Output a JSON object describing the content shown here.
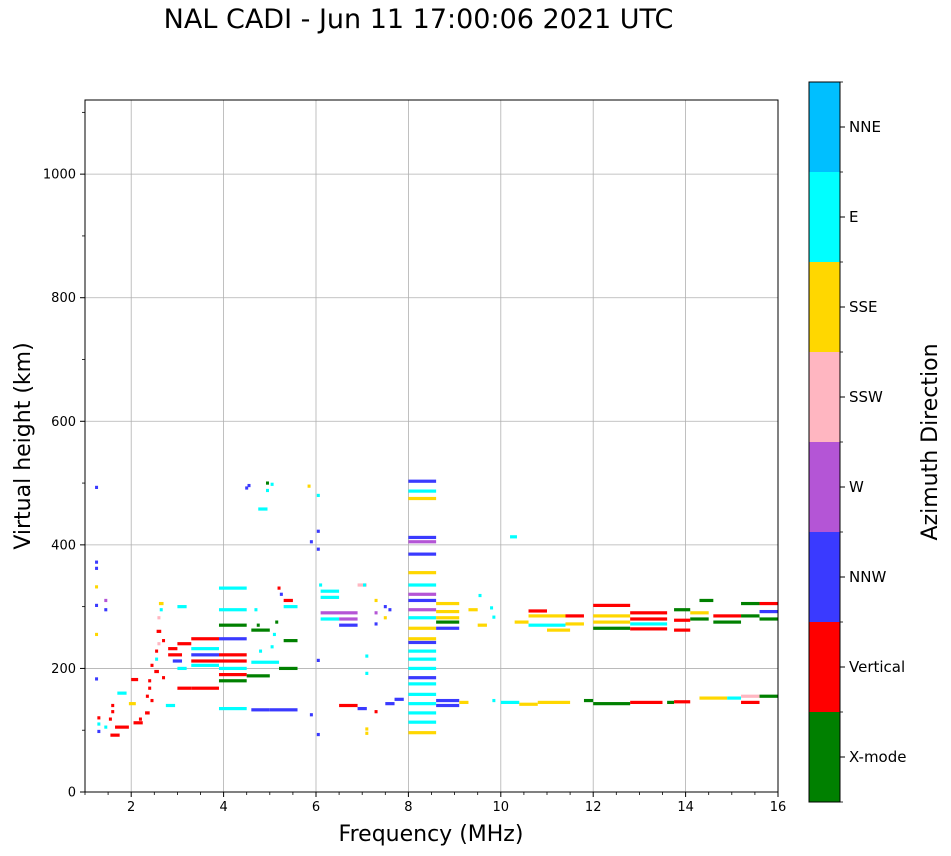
{
  "chart_data": {
    "type": "scatter",
    "title": "NAL CADI - Jun 11 17:00:06 2021 UTC",
    "xlabel": "Frequency (MHz)",
    "ylabel": "Virtual height (km)",
    "xlim": [
      1,
      16
    ],
    "ylim": [
      0,
      1120
    ],
    "xticks": [
      2,
      4,
      6,
      8,
      10,
      12,
      14,
      16
    ],
    "yticks": [
      0,
      200,
      400,
      600,
      800,
      1000
    ],
    "grid": true,
    "colorbar": {
      "label": "Azimuth Direction",
      "categories": [
        "X-mode",
        "Vertical",
        "NNW",
        "W",
        "SSW",
        "SSE",
        "E",
        "NNE"
      ],
      "colors": [
        "#008000",
        "#ff0000",
        "#3a3aff",
        "#b455d6",
        "#ffb6c1",
        "#ffd700",
        "#00ffff",
        "#00bfff"
      ]
    },
    "segments": [
      {
        "f0": 1.65,
        "f1": 1.95,
        "h": 105,
        "dir": "Vertical"
      },
      {
        "f0": 1.55,
        "f1": 1.75,
        "h": 92,
        "dir": "Vertical"
      },
      {
        "f0": 1.7,
        "f1": 1.9,
        "h": 160,
        "dir": "E"
      },
      {
        "f0": 1.95,
        "f1": 2.1,
        "h": 143,
        "dir": "SSE"
      },
      {
        "f0": 2.0,
        "f1": 2.15,
        "h": 182,
        "dir": "Vertical"
      },
      {
        "f0": 2.05,
        "f1": 2.25,
        "h": 112,
        "dir": "Vertical"
      },
      {
        "f0": 2.3,
        "f1": 2.4,
        "h": 128,
        "dir": "Vertical"
      },
      {
        "f0": 2.5,
        "f1": 2.6,
        "h": 195,
        "dir": "Vertical"
      },
      {
        "f0": 2.55,
        "f1": 2.65,
        "h": 260,
        "dir": "Vertical"
      },
      {
        "f0": 2.6,
        "f1": 2.7,
        "h": 305,
        "dir": "SSE"
      },
      {
        "f0": 2.75,
        "f1": 2.95,
        "h": 140,
        "dir": "E"
      },
      {
        "f0": 2.8,
        "f1": 3.0,
        "h": 232,
        "dir": "Vertical"
      },
      {
        "f0": 2.8,
        "f1": 3.1,
        "h": 222,
        "dir": "Vertical"
      },
      {
        "f0": 2.9,
        "f1": 3.1,
        "h": 212,
        "dir": "NNW"
      },
      {
        "f0": 3.0,
        "f1": 3.2,
        "h": 300,
        "dir": "E"
      },
      {
        "f0": 3.0,
        "f1": 3.3,
        "h": 240,
        "dir": "Vertical"
      },
      {
        "f0": 3.0,
        "f1": 3.3,
        "h": 168,
        "dir": "Vertical"
      },
      {
        "f0": 3.0,
        "f1": 3.2,
        "h": 200,
        "dir": "E"
      },
      {
        "f0": 3.3,
        "f1": 3.9,
        "h": 248,
        "dir": "Vertical"
      },
      {
        "f0": 3.3,
        "f1": 3.9,
        "h": 232,
        "dir": "E"
      },
      {
        "f0": 3.3,
        "f1": 3.9,
        "h": 222,
        "dir": "NNW"
      },
      {
        "f0": 3.3,
        "f1": 3.9,
        "h": 212,
        "dir": "Vertical"
      },
      {
        "f0": 3.3,
        "f1": 3.9,
        "h": 205,
        "dir": "E"
      },
      {
        "f0": 3.3,
        "f1": 3.9,
        "h": 168,
        "dir": "Vertical"
      },
      {
        "f0": 3.9,
        "f1": 4.5,
        "h": 330,
        "dir": "E"
      },
      {
        "f0": 3.9,
        "f1": 4.5,
        "h": 295,
        "dir": "E"
      },
      {
        "f0": 3.9,
        "f1": 4.5,
        "h": 270,
        "dir": "X-mode"
      },
      {
        "f0": 3.9,
        "f1": 4.5,
        "h": 248,
        "dir": "NNW"
      },
      {
        "f0": 3.9,
        "f1": 4.5,
        "h": 222,
        "dir": "Vertical"
      },
      {
        "f0": 3.9,
        "f1": 4.5,
        "h": 212,
        "dir": "Vertical"
      },
      {
        "f0": 3.9,
        "f1": 4.5,
        "h": 200,
        "dir": "E"
      },
      {
        "f0": 3.9,
        "f1": 4.5,
        "h": 190,
        "dir": "Vertical"
      },
      {
        "f0": 3.9,
        "f1": 4.5,
        "h": 180,
        "dir": "X-mode"
      },
      {
        "f0": 3.9,
        "f1": 4.5,
        "h": 135,
        "dir": "E"
      },
      {
        "f0": 4.5,
        "f1": 5.0,
        "h": 188,
        "dir": "X-mode"
      },
      {
        "f0": 4.6,
        "f1": 5.2,
        "h": 210,
        "dir": "E"
      },
      {
        "f0": 4.6,
        "f1": 5.0,
        "h": 262,
        "dir": "X-mode"
      },
      {
        "f0": 4.6,
        "f1": 5.0,
        "h": 133,
        "dir": "NNW"
      },
      {
        "f0": 4.75,
        "f1": 4.95,
        "h": 458,
        "dir": "E"
      },
      {
        "f0": 5.0,
        "f1": 5.6,
        "h": 133,
        "dir": "NNW"
      },
      {
        "f0": 5.2,
        "f1": 5.6,
        "h": 200,
        "dir": "X-mode"
      },
      {
        "f0": 5.3,
        "f1": 5.6,
        "h": 245,
        "dir": "X-mode"
      },
      {
        "f0": 5.3,
        "f1": 5.6,
        "h": 300,
        "dir": "E"
      },
      {
        "f0": 5.3,
        "f1": 5.5,
        "h": 310,
        "dir": "Vertical"
      },
      {
        "f0": 6.1,
        "f1": 6.5,
        "h": 325,
        "dir": "E"
      },
      {
        "f0": 6.1,
        "f1": 6.5,
        "h": 315,
        "dir": "E"
      },
      {
        "f0": 6.1,
        "f1": 6.9,
        "h": 290,
        "dir": "W"
      },
      {
        "f0": 6.1,
        "f1": 6.5,
        "h": 280,
        "dir": "E"
      },
      {
        "f0": 6.5,
        "f1": 6.9,
        "h": 270,
        "dir": "NNW"
      },
      {
        "f0": 6.5,
        "f1": 6.9,
        "h": 280,
        "dir": "W"
      },
      {
        "f0": 6.5,
        "f1": 6.9,
        "h": 140,
        "dir": "Vertical"
      },
      {
        "f0": 6.9,
        "f1": 7.1,
        "h": 335,
        "dir": "SSW"
      },
      {
        "f0": 6.9,
        "f1": 7.1,
        "h": 135,
        "dir": "NNW"
      },
      {
        "f0": 7.5,
        "f1": 7.7,
        "h": 143,
        "dir": "NNW"
      },
      {
        "f0": 7.7,
        "f1": 7.9,
        "h": 150,
        "dir": "NNW"
      },
      {
        "f0": 8.0,
        "f1": 8.6,
        "h": 503,
        "dir": "NNW"
      },
      {
        "f0": 8.0,
        "f1": 8.6,
        "h": 487,
        "dir": "E"
      },
      {
        "f0": 8.0,
        "f1": 8.6,
        "h": 475,
        "dir": "SSE"
      },
      {
        "f0": 8.0,
        "f1": 8.6,
        "h": 412,
        "dir": "NNW"
      },
      {
        "f0": 8.0,
        "f1": 8.6,
        "h": 405,
        "dir": "W"
      },
      {
        "f0": 8.0,
        "f1": 8.6,
        "h": 385,
        "dir": "NNW"
      },
      {
        "f0": 8.0,
        "f1": 8.6,
        "h": 355,
        "dir": "SSE"
      },
      {
        "f0": 8.0,
        "f1": 8.6,
        "h": 335,
        "dir": "E"
      },
      {
        "f0": 8.0,
        "f1": 8.6,
        "h": 320,
        "dir": "W"
      },
      {
        "f0": 8.0,
        "f1": 8.6,
        "h": 310,
        "dir": "NNW"
      },
      {
        "f0": 8.0,
        "f1": 8.6,
        "h": 295,
        "dir": "W"
      },
      {
        "f0": 8.0,
        "f1": 8.6,
        "h": 282,
        "dir": "E"
      },
      {
        "f0": 8.0,
        "f1": 8.6,
        "h": 265,
        "dir": "SSE"
      },
      {
        "f0": 8.0,
        "f1": 8.6,
        "h": 248,
        "dir": "SSE"
      },
      {
        "f0": 8.0,
        "f1": 8.6,
        "h": 242,
        "dir": "NNW"
      },
      {
        "f0": 8.0,
        "f1": 8.6,
        "h": 228,
        "dir": "E"
      },
      {
        "f0": 8.0,
        "f1": 8.6,
        "h": 215,
        "dir": "E"
      },
      {
        "f0": 8.0,
        "f1": 8.6,
        "h": 200,
        "dir": "E"
      },
      {
        "f0": 8.0,
        "f1": 8.6,
        "h": 185,
        "dir": "NNW"
      },
      {
        "f0": 8.0,
        "f1": 8.6,
        "h": 175,
        "dir": "E"
      },
      {
        "f0": 8.0,
        "f1": 8.6,
        "h": 158,
        "dir": "E"
      },
      {
        "f0": 8.0,
        "f1": 8.6,
        "h": 143,
        "dir": "E"
      },
      {
        "f0": 8.0,
        "f1": 8.6,
        "h": 128,
        "dir": "E"
      },
      {
        "f0": 8.0,
        "f1": 8.6,
        "h": 113,
        "dir": "E"
      },
      {
        "f0": 8.0,
        "f1": 8.6,
        "h": 96,
        "dir": "SSE"
      },
      {
        "f0": 8.6,
        "f1": 9.1,
        "h": 305,
        "dir": "SSE"
      },
      {
        "f0": 8.6,
        "f1": 9.1,
        "h": 292,
        "dir": "SSE"
      },
      {
        "f0": 8.6,
        "f1": 9.1,
        "h": 282,
        "dir": "SSE"
      },
      {
        "f0": 8.6,
        "f1": 9.1,
        "h": 275,
        "dir": "X-mode"
      },
      {
        "f0": 8.6,
        "f1": 9.1,
        "h": 265,
        "dir": "NNW"
      },
      {
        "f0": 8.6,
        "f1": 9.1,
        "h": 148,
        "dir": "NNW"
      },
      {
        "f0": 8.6,
        "f1": 9.1,
        "h": 140,
        "dir": "NNW"
      },
      {
        "f0": 9.1,
        "f1": 9.3,
        "h": 145,
        "dir": "SSE"
      },
      {
        "f0": 9.3,
        "f1": 9.5,
        "h": 295,
        "dir": "SSE"
      },
      {
        "f0": 9.5,
        "f1": 9.7,
        "h": 270,
        "dir": "SSE"
      },
      {
        "f0": 10.2,
        "f1": 10.35,
        "h": 413,
        "dir": "E"
      },
      {
        "f0": 10.0,
        "f1": 10.4,
        "h": 145,
        "dir": "E"
      },
      {
        "f0": 10.3,
        "f1": 10.6,
        "h": 275,
        "dir": "SSE"
      },
      {
        "f0": 10.4,
        "f1": 10.8,
        "h": 142,
        "dir": "SSE"
      },
      {
        "f0": 10.6,
        "f1": 11.0,
        "h": 293,
        "dir": "Vertical"
      },
      {
        "f0": 10.6,
        "f1": 11.4,
        "h": 285,
        "dir": "SSE"
      },
      {
        "f0": 10.6,
        "f1": 11.4,
        "h": 270,
        "dir": "E"
      },
      {
        "f0": 10.8,
        "f1": 11.5,
        "h": 145,
        "dir": "SSE"
      },
      {
        "f0": 11.0,
        "f1": 11.5,
        "h": 262,
        "dir": "SSE"
      },
      {
        "f0": 11.4,
        "f1": 11.8,
        "h": 285,
        "dir": "Vertical"
      },
      {
        "f0": 11.4,
        "f1": 11.8,
        "h": 272,
        "dir": "SSE"
      },
      {
        "f0": 11.8,
        "f1": 12.0,
        "h": 148,
        "dir": "X-mode"
      },
      {
        "f0": 12.0,
        "f1": 12.8,
        "h": 302,
        "dir": "Vertical"
      },
      {
        "f0": 12.0,
        "f1": 12.8,
        "h": 285,
        "dir": "SSE"
      },
      {
        "f0": 12.0,
        "f1": 12.8,
        "h": 275,
        "dir": "SSE"
      },
      {
        "f0": 12.0,
        "f1": 12.8,
        "h": 265,
        "dir": "X-mode"
      },
      {
        "f0": 12.0,
        "f1": 12.8,
        "h": 143,
        "dir": "X-mode"
      },
      {
        "f0": 12.8,
        "f1": 13.6,
        "h": 290,
        "dir": "Vertical"
      },
      {
        "f0": 12.8,
        "f1": 13.6,
        "h": 280,
        "dir": "Vertical"
      },
      {
        "f0": 12.8,
        "f1": 13.6,
        "h": 272,
        "dir": "E"
      },
      {
        "f0": 12.8,
        "f1": 13.6,
        "h": 264,
        "dir": "Vertical"
      },
      {
        "f0": 12.8,
        "f1": 13.5,
        "h": 145,
        "dir": "Vertical"
      },
      {
        "f0": 13.6,
        "f1": 13.75,
        "h": 145,
        "dir": "X-mode"
      },
      {
        "f0": 13.75,
        "f1": 14.1,
        "h": 295,
        "dir": "X-mode"
      },
      {
        "f0": 13.75,
        "f1": 14.1,
        "h": 278,
        "dir": "Vertical"
      },
      {
        "f0": 13.75,
        "f1": 14.1,
        "h": 262,
        "dir": "Vertical"
      },
      {
        "f0": 13.75,
        "f1": 14.1,
        "h": 146,
        "dir": "Vertical"
      },
      {
        "f0": 14.1,
        "f1": 14.5,
        "h": 290,
        "dir": "SSE"
      },
      {
        "f0": 14.1,
        "f1": 14.5,
        "h": 280,
        "dir": "X-mode"
      },
      {
        "f0": 14.3,
        "f1": 14.6,
        "h": 310,
        "dir": "X-mode"
      },
      {
        "f0": 14.3,
        "f1": 14.9,
        "h": 152,
        "dir": "SSE"
      },
      {
        "f0": 14.6,
        "f1": 15.2,
        "h": 285,
        "dir": "Vertical"
      },
      {
        "f0": 14.6,
        "f1": 15.2,
        "h": 275,
        "dir": "X-mode"
      },
      {
        "f0": 14.9,
        "f1": 15.2,
        "h": 152,
        "dir": "E"
      },
      {
        "f0": 15.2,
        "f1": 15.6,
        "h": 155,
        "dir": "SSW"
      },
      {
        "f0": 15.2,
        "f1": 15.6,
        "h": 145,
        "dir": "Vertical"
      },
      {
        "f0": 15.2,
        "f1": 15.6,
        "h": 305,
        "dir": "X-mode"
      },
      {
        "f0": 15.2,
        "f1": 15.6,
        "h": 285,
        "dir": "X-mode"
      },
      {
        "f0": 15.6,
        "f1": 16.0,
        "h": 305,
        "dir": "Vertical"
      },
      {
        "f0": 15.6,
        "f1": 16.0,
        "h": 292,
        "dir": "NNW"
      },
      {
        "f0": 15.6,
        "f1": 16.0,
        "h": 280,
        "dir": "X-mode"
      },
      {
        "f0": 15.6,
        "f1": 16.0,
        "h": 155,
        "dir": "X-mode"
      }
    ],
    "points": [
      {
        "f": 1.25,
        "h": 493,
        "dir": "NNW"
      },
      {
        "f": 1.25,
        "h": 372,
        "dir": "NNW"
      },
      {
        "f": 1.25,
        "h": 362,
        "dir": "NNW"
      },
      {
        "f": 1.25,
        "h": 332,
        "dir": "SSE"
      },
      {
        "f": 1.25,
        "h": 302,
        "dir": "NNW"
      },
      {
        "f": 1.25,
        "h": 255,
        "dir": "SSE"
      },
      {
        "f": 1.25,
        "h": 183,
        "dir": "NNW"
      },
      {
        "f": 1.3,
        "h": 120,
        "dir": "Vertical"
      },
      {
        "f": 1.3,
        "h": 110,
        "dir": "E"
      },
      {
        "f": 1.3,
        "h": 98,
        "dir": "NNW"
      },
      {
        "f": 1.45,
        "h": 310,
        "dir": "W"
      },
      {
        "f": 1.45,
        "h": 295,
        "dir": "NNW"
      },
      {
        "f": 1.45,
        "h": 105,
        "dir": "E"
      },
      {
        "f": 1.55,
        "h": 118,
        "dir": "Vertical"
      },
      {
        "f": 1.6,
        "h": 130,
        "dir": "Vertical"
      },
      {
        "f": 1.6,
        "h": 140,
        "dir": "Vertical"
      },
      {
        "f": 2.2,
        "h": 118,
        "dir": "Vertical"
      },
      {
        "f": 2.35,
        "h": 155,
        "dir": "Vertical"
      },
      {
        "f": 2.4,
        "h": 168,
        "dir": "Vertical"
      },
      {
        "f": 2.4,
        "h": 180,
        "dir": "Vertical"
      },
      {
        "f": 2.45,
        "h": 205,
        "dir": "Vertical"
      },
      {
        "f": 2.45,
        "h": 148,
        "dir": "Vertical"
      },
      {
        "f": 2.55,
        "h": 215,
        "dir": "E"
      },
      {
        "f": 2.55,
        "h": 228,
        "dir": "Vertical"
      },
      {
        "f": 2.6,
        "h": 240,
        "dir": "SSW"
      },
      {
        "f": 2.6,
        "h": 282,
        "dir": "SSW"
      },
      {
        "f": 2.65,
        "h": 295,
        "dir": "E"
      },
      {
        "f": 2.7,
        "h": 245,
        "dir": "Vertical"
      },
      {
        "f": 2.7,
        "h": 185,
        "dir": "Vertical"
      },
      {
        "f": 4.5,
        "h": 492,
        "dir": "NNW"
      },
      {
        "f": 4.55,
        "h": 496,
        "dir": "NNW"
      },
      {
        "f": 4.7,
        "h": 295,
        "dir": "E"
      },
      {
        "f": 4.75,
        "h": 270,
        "dir": "X-mode"
      },
      {
        "f": 4.8,
        "h": 228,
        "dir": "E"
      },
      {
        "f": 4.95,
        "h": 500,
        "dir": "X-mode"
      },
      {
        "f": 4.95,
        "h": 488,
        "dir": "E"
      },
      {
        "f": 5.05,
        "h": 498,
        "dir": "E"
      },
      {
        "f": 5.05,
        "h": 235,
        "dir": "E"
      },
      {
        "f": 5.1,
        "h": 255,
        "dir": "E"
      },
      {
        "f": 5.15,
        "h": 275,
        "dir": "X-mode"
      },
      {
        "f": 5.2,
        "h": 330,
        "dir": "Vertical"
      },
      {
        "f": 5.25,
        "h": 320,
        "dir": "NNW"
      },
      {
        "f": 5.85,
        "h": 495,
        "dir": "SSE"
      },
      {
        "f": 5.9,
        "h": 405,
        "dir": "NNW"
      },
      {
        "f": 6.05,
        "h": 480,
        "dir": "E"
      },
      {
        "f": 6.05,
        "h": 422,
        "dir": "NNW"
      },
      {
        "f": 6.05,
        "h": 393,
        "dir": "NNW"
      },
      {
        "f": 6.05,
        "h": 213,
        "dir": "NNW"
      },
      {
        "f": 6.05,
        "h": 93,
        "dir": "NNW"
      },
      {
        "f": 6.1,
        "h": 335,
        "dir": "E"
      },
      {
        "f": 5.9,
        "h": 125,
        "dir": "NNW"
      },
      {
        "f": 7.05,
        "h": 335,
        "dir": "E"
      },
      {
        "f": 7.1,
        "h": 220,
        "dir": "E"
      },
      {
        "f": 7.1,
        "h": 192,
        "dir": "E"
      },
      {
        "f": 7.1,
        "h": 102,
        "dir": "SSE"
      },
      {
        "f": 7.1,
        "h": 95,
        "dir": "SSE"
      },
      {
        "f": 7.3,
        "h": 310,
        "dir": "SSE"
      },
      {
        "f": 7.3,
        "h": 290,
        "dir": "W"
      },
      {
        "f": 7.3,
        "h": 272,
        "dir": "NNW"
      },
      {
        "f": 7.3,
        "h": 130,
        "dir": "Vertical"
      },
      {
        "f": 7.5,
        "h": 300,
        "dir": "NNW"
      },
      {
        "f": 7.5,
        "h": 282,
        "dir": "SSE"
      },
      {
        "f": 7.6,
        "h": 295,
        "dir": "NNW"
      },
      {
        "f": 9.55,
        "h": 318,
        "dir": "E"
      },
      {
        "f": 9.8,
        "h": 298,
        "dir": "E"
      },
      {
        "f": 9.85,
        "h": 283,
        "dir": "E"
      },
      {
        "f": 9.85,
        "h": 148,
        "dir": "E"
      }
    ]
  }
}
